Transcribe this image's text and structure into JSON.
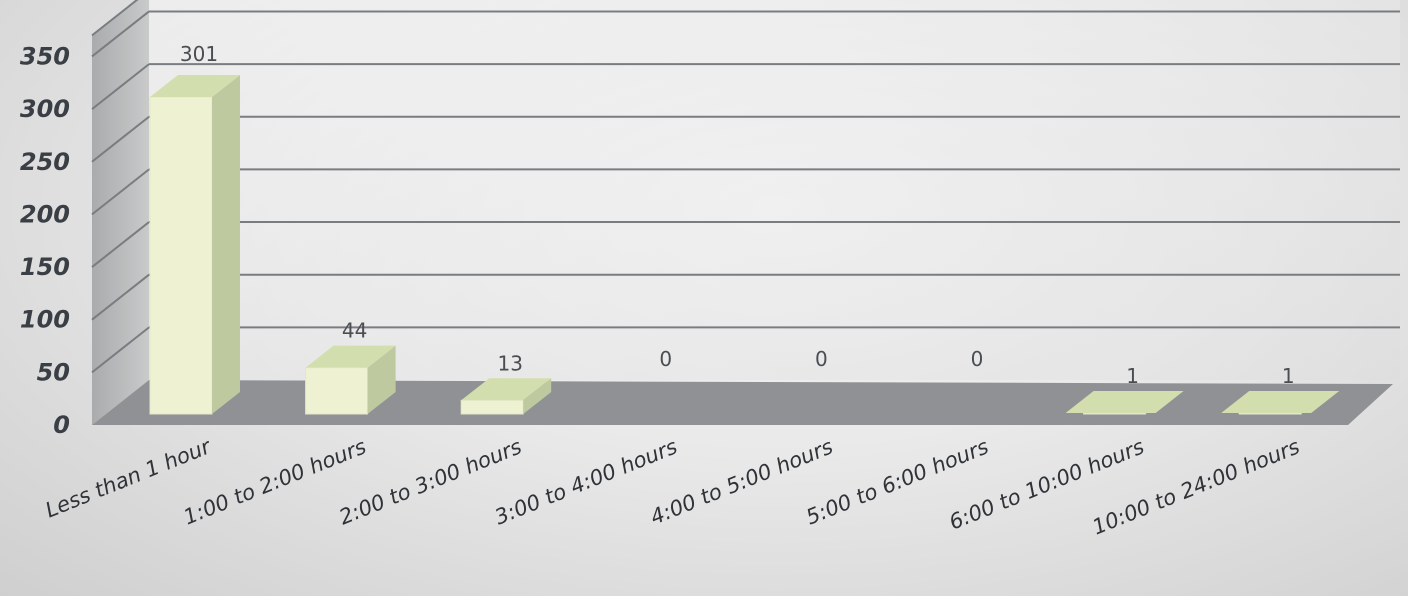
{
  "chart_data": {
    "type": "bar",
    "categories": [
      "Less than 1 hour",
      "1:00 to 2:00 hours",
      "2:00 to 3:00 hours",
      "3:00 to 4:00 hours",
      "4:00 to 5:00 hours",
      "5:00 to 6:00 hours",
      "6:00 to 10:00 hours",
      "10:00 to 24:00 hours"
    ],
    "values": [
      301,
      44,
      13,
      0,
      0,
      0,
      1,
      1
    ],
    "y_ticks": [
      "0",
      "50",
      "100",
      "150",
      "200",
      "250",
      "300",
      "350"
    ],
    "ylim": [
      0,
      350
    ],
    "grid": true,
    "legend": "none",
    "style": "3d-column",
    "colors": {
      "bar_front": "#eef2d3",
      "bar_side": "#bfc9a0",
      "bar_top": "#d3deae",
      "wall": "#d2d2d2",
      "floor": "#8f9194",
      "grid": "#7a7d80"
    }
  }
}
